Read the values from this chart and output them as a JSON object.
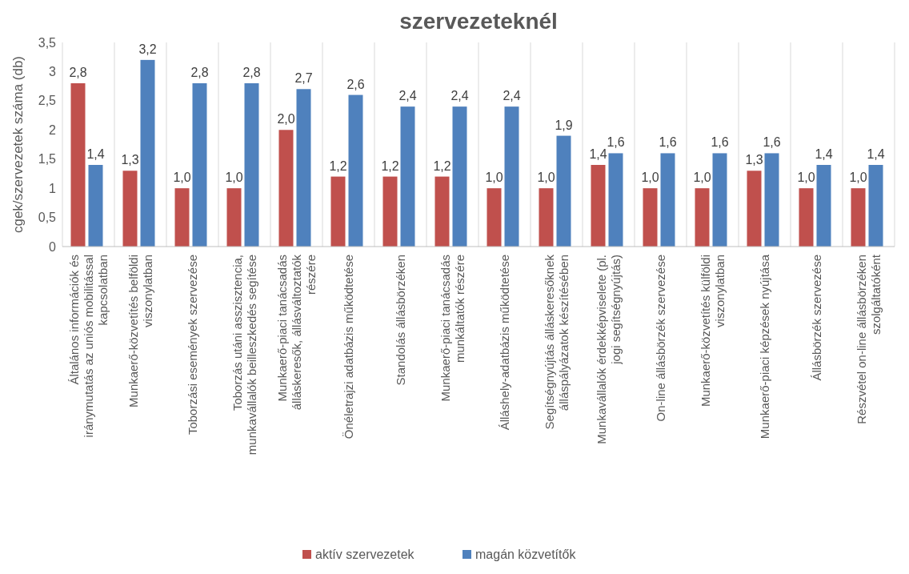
{
  "chart_data": {
    "type": "bar",
    "title": "szervezeteknél",
    "ylabel": "cgek/szervezetek száma (db)",
    "categories": [
      "Általános információk és iránymutatás az uniós mobilitással kapcsolatban",
      "Munkaerő-közvetítés belföldi viszonylatban",
      "Toborzási események szervezése",
      "Toborzás utáni asszisztencia, munkavállalók beilleszkedés segítése",
      "Munkaerő-piaci tanácsadás álláskeresők, állásváltoztatók részére",
      "Önéletrajzi adatbázis működtetése",
      "Standolás állásbörzéken",
      "Munkaerő-piaci tanácsadás munkáltatók részére",
      "Álláshely-adatbázis működtetése",
      "Segítségnyújtás álláskeresőknek álláspályázatok készítésében",
      "Munkavállalók érdekképviselete (pl. jogi segítségnyújtás)",
      "On-line állásbörzék szervezése",
      "Munkaerő-közvetítés külföldi viszonylatban",
      "Munkaerő-piaci képzések nyújtása",
      "Állásbörzék szervezése",
      "Részvétel on-line állásbörzéken szolgáltatóként"
    ],
    "series": [
      {
        "name": "aktív szervezetek",
        "color": "#c0504d",
        "values": [
          2.8,
          1.3,
          1.0,
          1.0,
          2.0,
          1.2,
          1.2,
          1.2,
          1.0,
          1.0,
          1.4,
          1.0,
          1.0,
          1.3,
          1.0,
          1.0
        ],
        "value_labels": [
          "2,8",
          "1,3",
          "1,0",
          "1,0",
          "2,0",
          "1,2",
          "1,2",
          "1,2",
          "1,0",
          "1,0",
          "1,4",
          "1,0",
          "1,0",
          "1,3",
          "1,0",
          "1,0"
        ]
      },
      {
        "name": "magán közvetítők",
        "color": "#4f81bd",
        "values": [
          1.4,
          3.2,
          2.8,
          2.8,
          2.7,
          2.6,
          2.4,
          2.4,
          2.4,
          1.9,
          1.6,
          1.6,
          1.6,
          1.6,
          1.4,
          1.4
        ],
        "value_labels": [
          "1,4",
          "3,2",
          "2,8",
          "2,8",
          "2,7",
          "2,6",
          "2,4",
          "2,4",
          "2,4",
          "1,9",
          "1,6",
          "1,6",
          "1,6",
          "1,6",
          "1,4",
          "1,4"
        ]
      }
    ],
    "ylim": [
      0,
      3.5
    ],
    "yticks": [
      0,
      {
        "value": 0.5,
        "label": "0,5"
      },
      1,
      {
        "value": 1.5,
        "label": "1,5"
      },
      2,
      {
        "value": 2.5,
        "label": "2,5"
      },
      3,
      {
        "value": 3.5,
        "label": "3,5"
      }
    ],
    "grid": "x",
    "legend": "bottom"
  }
}
